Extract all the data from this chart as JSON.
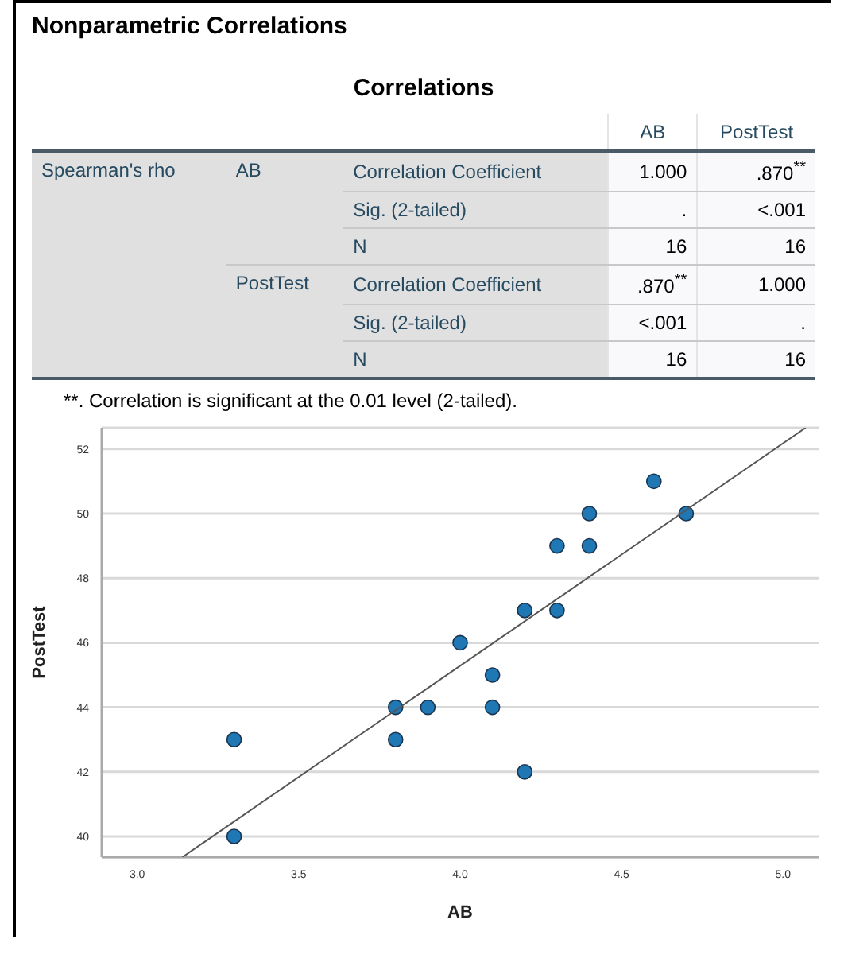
{
  "chart_data": [
    {
      "type": "other",
      "title": "Nonparametric Correlations",
      "subtitle": "Correlations",
      "categories": [
        "AB",
        "PostTest"
      ],
      "annotations": [
        "Spearman's rho",
        "AB",
        "PostTest",
        "Correlation Coefficient",
        "Sig. (2-tailed)",
        "N",
        "Correlation Coefficient",
        "Sig. (2-tailed)",
        "N",
        "1.000",
        ".870$^{**}$",
        ".",
        "<.001",
        "16",
        "16",
        ".870$^{**}$",
        "1.000",
        "<.001",
        ".",
        "16",
        "16",
        "**. Correlation is significant at the 0.01 level (2-tailed)."
      ]
    },
    {
      "type": "scatter",
      "xlabel": "AB",
      "ylabel": "PostTest",
      "grid": "y",
      "xlim": [
        2.89,
        5.11
      ],
      "ylim": [
        39.36,
        52.66
      ],
      "xticks": [
        {
          "value": 3,
          "label": "3.0"
        },
        {
          "value": 3.5,
          "label": "3.5"
        },
        {
          "value": 4,
          "label": "4.0"
        },
        {
          "value": 4.5,
          "label": "4.5"
        },
        {
          "value": 5,
          "label": "5.0"
        }
      ],
      "yticks": [
        40,
        42,
        44,
        46,
        48,
        50,
        52
      ],
      "series": [
        {
          "color": "#1f77b4",
          "marker": "circle",
          "x": [
            3.3,
            3.3,
            3.8,
            3.8,
            3.9,
            4.0,
            4.1,
            4.1,
            4.2,
            4.2,
            4.3,
            4.3,
            4.4,
            4.4,
            4.6,
            4.7
          ],
          "values": [
            43,
            40,
            44,
            43,
            44,
            46,
            45,
            44,
            47,
            42,
            49,
            47,
            50,
            49,
            51,
            50
          ]
        },
        {
          "type": "line",
          "marker": "none",
          "color": "#555555",
          "x": [
            3.14,
            5.07
          ],
          "values": [
            39.36,
            52.66
          ]
        }
      ]
    }
  ]
}
